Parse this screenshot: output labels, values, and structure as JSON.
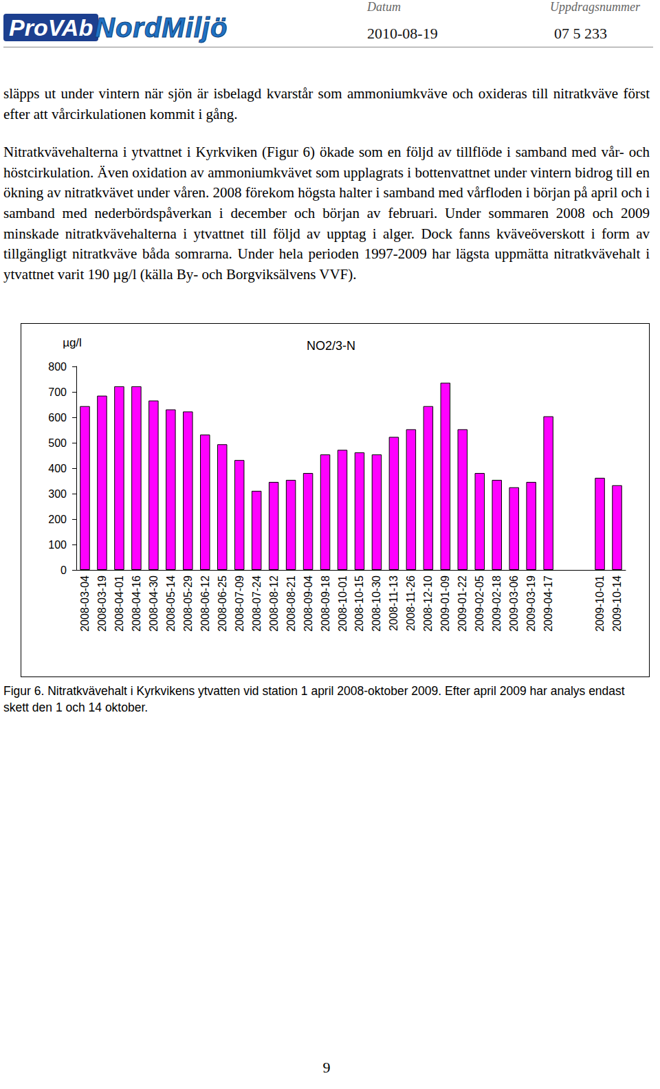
{
  "header": {
    "logos": [
      "ProVAb",
      "NordMiljö"
    ],
    "date_label": "Datum",
    "date": "2010-08-19",
    "assignment_label": "Uppdragsnummer",
    "assignment_number": "07 5 233"
  },
  "paragraphs": [
    "släpps ut under vintern när sjön är isbelagd kvarstår som ammoniumkväve och oxideras till nitratkväve först efter att vårcirkulationen kommit i gång.",
    "Nitratkvävehalterna i ytvattnet i Kyrkviken (Figur 6) ökade som en följd av tillflöde i samband med vår- och höstcirkulation. Även oxidation av ammoniumkvävet som upplagrats i bottenvattnet under vintern bidrog till en ökning av nitratkvävet under våren. 2008 förekom högsta halter i samband med vårfloden i början på april och i samband med nederbördspåverkan i december och början av februari. Under sommaren 2008 och 2009 minskade nitratkvävehalterna i ytvattnet till följd av upptag i alger. Dock fanns kväveöverskott i form av tillgängligt nitratkväve båda somrarna. Under hela perioden 1997-2009 har lägsta uppmätta nitratkvävehalt i ytvattnet varit 190 µg/l (källa By- och Borgviksälvens VVF)."
  ],
  "chart_data": {
    "type": "bar",
    "title": "NO2/3-N",
    "ylabel": "µg/l",
    "categories": [
      "2008-03-04",
      "2008-03-19",
      "2008-04-01",
      "2008-04-16",
      "2008-04-30",
      "2008-05-14",
      "2008-05-29",
      "2008-06-12",
      "2008-06-25",
      "2008-07-09",
      "2008-07-24",
      "2008-08-12",
      "2008-08-21",
      "2008-09-04",
      "2008-09-18",
      "2008-10-01",
      "2008-10-15",
      "2008-10-30",
      "2008-11-13",
      "2008-11-26",
      "2008-12-10",
      "2009-01-09",
      "2009-01-22",
      "2009-02-05",
      "2009-02-18",
      "2009-03-06",
      "2009-03-19",
      "2009-04-17",
      null,
      null,
      "2009-10-01",
      "2009-10-14"
    ],
    "values": [
      644,
      685,
      722,
      722,
      666,
      631,
      623,
      532,
      494,
      432,
      311,
      346,
      354,
      381,
      454,
      472,
      462,
      454,
      523,
      553,
      644,
      736,
      553,
      381,
      354,
      325,
      346,
      604,
      null,
      null,
      362,
      333
    ],
    "color": "#ff00ff",
    "ylim": [
      0,
      800
    ],
    "yticks": [
      0,
      100,
      200,
      300,
      400,
      500,
      600,
      700,
      800
    ],
    "grid": false
  },
  "caption": "Figur 6. Nitratkvävehalt i Kyrkvikens ytvatten vid station 1 april 2008-oktober 2009. Efter april 2009 har analys endast skett den 1 och 14 oktober.",
  "page_number": "9"
}
